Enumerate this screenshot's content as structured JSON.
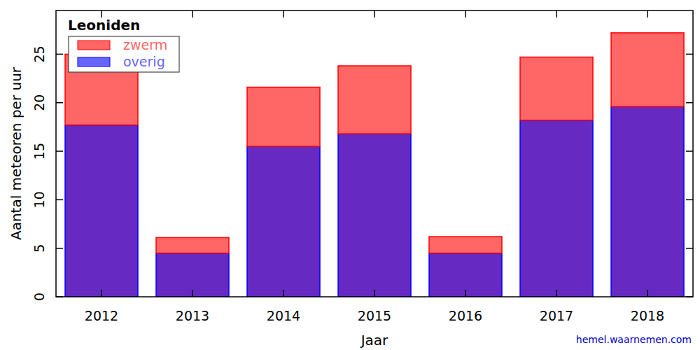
{
  "chart_data": {
    "type": "bar",
    "title": "Leoniden",
    "stacked": true,
    "legend": "upper left",
    "x_label": "Jaar",
    "y_label": "Aantal meteoren per uur",
    "source": "hemel.waarnemen.com",
    "categories": [
      "2012",
      "2013",
      "2014",
      "2015",
      "2016",
      "2017",
      "2018"
    ],
    "series": [
      {
        "name": "overig",
        "color": "#0000ff",
        "values": [
          17.7,
          4.5,
          15.5,
          16.8,
          4.5,
          18.2,
          19.6
        ]
      },
      {
        "name": "zwerm",
        "color": "#ff0000",
        "values": [
          7.3,
          1.6,
          6.1,
          7.0,
          1.7,
          6.5,
          7.6
        ]
      }
    ],
    "ylim": [
      0,
      29.5
    ],
    "yticks": [
      0,
      5,
      10,
      15,
      20,
      25
    ],
    "grid": false
  }
}
